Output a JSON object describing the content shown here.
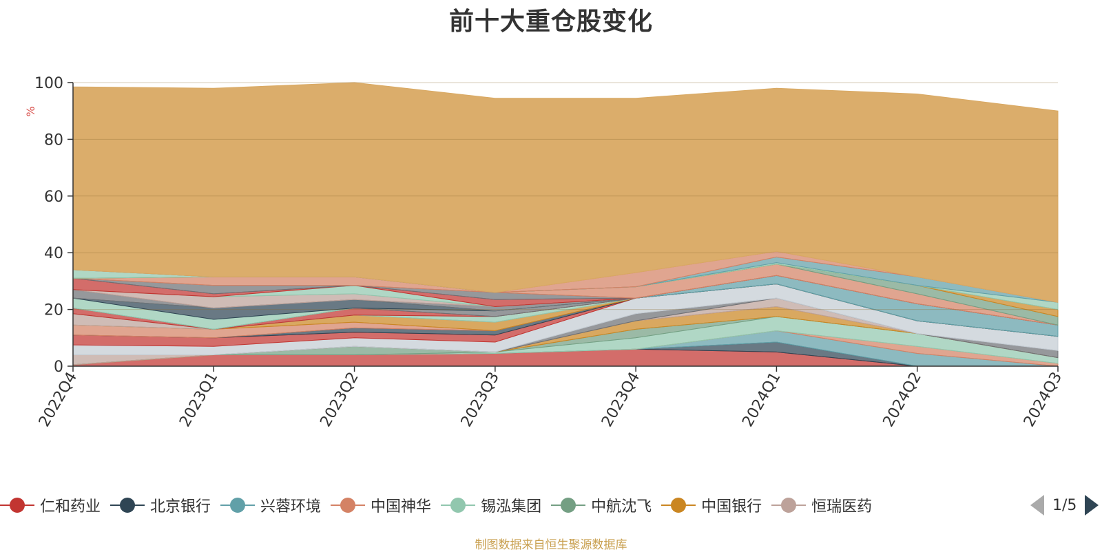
{
  "chart_data": {
    "type": "area",
    "stacked": true,
    "title": "前十大重仓股变化",
    "ylabel": "%",
    "ylim": [
      0,
      100
    ],
    "yticks": [
      0,
      20,
      40,
      60,
      80,
      100
    ],
    "categories": [
      "2022Q4",
      "2023Q1",
      "2023Q2",
      "2023Q3",
      "2023Q4",
      "2024Q1",
      "2024Q2",
      "2024Q3"
    ],
    "grid": true,
    "legend_position": "bottom",
    "legend_page": "1/5",
    "series": [
      {
        "name": "仁和药业",
        "color": "#c23531",
        "values": [
          0.5,
          4,
          4,
          4.5,
          6,
          5,
          0,
          0
        ]
      },
      {
        "name": "北京银行",
        "color": "#2f4554",
        "values": [
          0,
          0,
          0,
          0,
          0,
          3.5,
          0,
          0
        ]
      },
      {
        "name": "兴蓉环境",
        "color": "#61a0a8",
        "values": [
          0,
          0,
          0,
          0,
          0,
          4,
          4.5,
          0
        ]
      },
      {
        "name": "中国神华",
        "color": "#d48265",
        "values": [
          0,
          0,
          0,
          0,
          0,
          0,
          2.5,
          1
        ]
      },
      {
        "name": "锡泓集团",
        "color": "#91c7ae",
        "values": [
          0,
          0,
          0,
          0.5,
          4,
          5,
          4.5,
          2
        ]
      },
      {
        "name": "中航沈飞",
        "color": "#749f83",
        "values": [
          0,
          0,
          3,
          0,
          3,
          0,
          0,
          0
        ]
      },
      {
        "name": "中国银行",
        "color": "#ca8622",
        "values": [
          0,
          0,
          0,
          0,
          3,
          3.5,
          0,
          0
        ]
      },
      {
        "name": "恒瑞医药",
        "color": "#bda29a",
        "values": [
          3.5,
          0,
          0,
          0,
          0,
          3,
          0,
          0
        ]
      },
      {
        "name": "",
        "color": "#6e7074",
        "values": [
          0,
          0,
          0,
          0,
          2.5,
          0,
          0,
          2.5
        ]
      },
      {
        "name": "",
        "color": "#c4ccd3",
        "values": [
          3.5,
          3,
          3,
          3.5,
          5.5,
          5,
          4.5,
          5
        ]
      },
      {
        "name": "",
        "color": "#c23531",
        "values": [
          3.5,
          3,
          2,
          2.5,
          0,
          0,
          0,
          0
        ]
      },
      {
        "name": "",
        "color": "#2f4554",
        "values": [
          0,
          0,
          1.5,
          1.5,
          0,
          0,
          0,
          0
        ]
      },
      {
        "name": "",
        "color": "#d48265",
        "values": [
          3.5,
          3,
          2,
          0,
          0,
          0,
          0,
          0
        ]
      },
      {
        "name": "",
        "color": "#ca8622",
        "values": [
          0,
          0,
          2.5,
          3,
          0,
          0,
          0,
          0
        ]
      },
      {
        "name": "",
        "color": "#bda29a",
        "values": [
          4,
          0,
          0,
          0,
          0,
          0,
          0,
          0
        ]
      },
      {
        "name": "",
        "color": "#91c7ae",
        "values": [
          0,
          0,
          0,
          2,
          0,
          0,
          0,
          0
        ]
      },
      {
        "name": "",
        "color": "#c23531",
        "values": [
          2,
          0,
          2.5,
          0,
          0,
          0,
          0,
          0
        ]
      },
      {
        "name": "",
        "color": "#6e7074",
        "values": [
          0,
          0,
          0,
          2,
          0,
          0,
          0,
          0
        ]
      },
      {
        "name": "",
        "color": "#91c7ae",
        "values": [
          3.5,
          3.5,
          0,
          0,
          0,
          0,
          0,
          0
        ]
      },
      {
        "name": "",
        "color": "#2f4554",
        "values": [
          0,
          4,
          3,
          0,
          0,
          0,
          0,
          0
        ]
      },
      {
        "name": "",
        "color": "#61a0a8",
        "values": [
          0,
          0,
          0,
          0,
          0,
          3,
          6,
          4
        ]
      },
      {
        "name": "",
        "color": "#6e7074",
        "values": [
          3,
          0,
          0,
          1.5,
          0,
          0,
          0,
          0
        ]
      },
      {
        "name": "",
        "color": "#bda29a",
        "values": [
          0,
          4,
          2,
          0,
          0,
          0,
          0,
          0
        ]
      },
      {
        "name": "",
        "color": "#91c7ae",
        "values": [
          0,
          0,
          3,
          0,
          0,
          0,
          0,
          0
        ]
      },
      {
        "name": "",
        "color": "#c23531",
        "values": [
          4,
          1,
          0,
          2.5,
          0,
          0,
          0,
          0
        ]
      },
      {
        "name": "",
        "color": "#6e7074",
        "values": [
          0,
          3,
          0,
          2.5,
          0,
          0,
          0,
          0
        ]
      },
      {
        "name": "",
        "color": "#d48265",
        "values": [
          0,
          3,
          3,
          0,
          4,
          4,
          3.5,
          0
        ]
      },
      {
        "name": "",
        "color": "#749f83",
        "values": [
          0,
          0,
          0,
          0,
          0,
          0,
          3,
          3
        ]
      },
      {
        "name": "",
        "color": "#ca8622",
        "values": [
          0,
          0,
          0,
          0,
          0,
          0,
          0,
          2.5
        ]
      },
      {
        "name": "",
        "color": "#91c7ae",
        "values": [
          3,
          0,
          0,
          0,
          0,
          0.5,
          0,
          2.5
        ]
      },
      {
        "name": "",
        "color": "#61a0a8",
        "values": [
          0,
          0,
          0,
          0,
          0,
          2,
          3,
          0
        ]
      },
      {
        "name": "",
        "color": "#d48265",
        "values": [
          0,
          0,
          0,
          0,
          5,
          2,
          0,
          0
        ]
      },
      {
        "name": "",
        "color": "#d9a963",
        "values": [
          64.5,
          66.5,
          68.5,
          68.5,
          61.5,
          57.5,
          64.5,
          67.5
        ]
      }
    ]
  },
  "source_note": "制图数据来自恒生聚源数据库"
}
